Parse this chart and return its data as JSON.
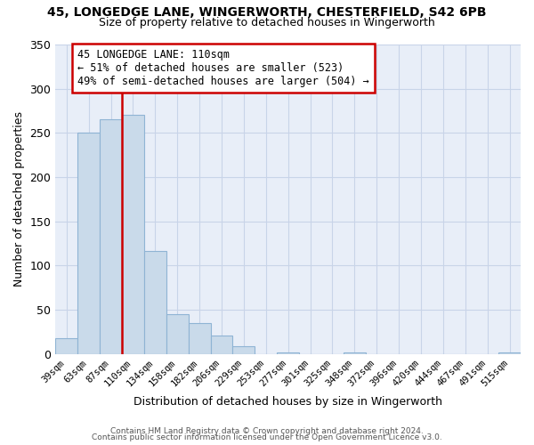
{
  "title": "45, LONGEDGE LANE, WINGERWORTH, CHESTERFIELD, S42 6PB",
  "subtitle": "Size of property relative to detached houses in Wingerworth",
  "xlabel": "Distribution of detached houses by size in Wingerworth",
  "ylabel": "Number of detached properties",
  "bar_labels": [
    "39sqm",
    "63sqm",
    "87sqm",
    "110sqm",
    "134sqm",
    "158sqm",
    "182sqm",
    "206sqm",
    "229sqm",
    "253sqm",
    "277sqm",
    "301sqm",
    "325sqm",
    "348sqm",
    "372sqm",
    "396sqm",
    "420sqm",
    "444sqm",
    "467sqm",
    "491sqm",
    "515sqm"
  ],
  "bar_values": [
    18,
    250,
    265,
    270,
    116,
    45,
    35,
    21,
    9,
    0,
    2,
    0,
    0,
    2,
    0,
    0,
    0,
    0,
    0,
    0,
    2
  ],
  "bar_color": "#c9daea",
  "bar_edge_color": "#8fb4d4",
  "vline_index": 3,
  "vline_color": "#cc0000",
  "annotation_title": "45 LONGEDGE LANE: 110sqm",
  "annotation_line1": "← 51% of detached houses are smaller (523)",
  "annotation_line2": "49% of semi-detached houses are larger (504) →",
  "annotation_box_color": "#ffffff",
  "annotation_box_edge_color": "#cc0000",
  "ylim": [
    0,
    350
  ],
  "yticks": [
    0,
    50,
    100,
    150,
    200,
    250,
    300,
    350
  ],
  "plot_bg_color": "#e8eef8",
  "background_color": "#ffffff",
  "grid_color": "#c8d4e8",
  "footer1": "Contains HM Land Registry data © Crown copyright and database right 2024.",
  "footer2": "Contains public sector information licensed under the Open Government Licence v3.0."
}
